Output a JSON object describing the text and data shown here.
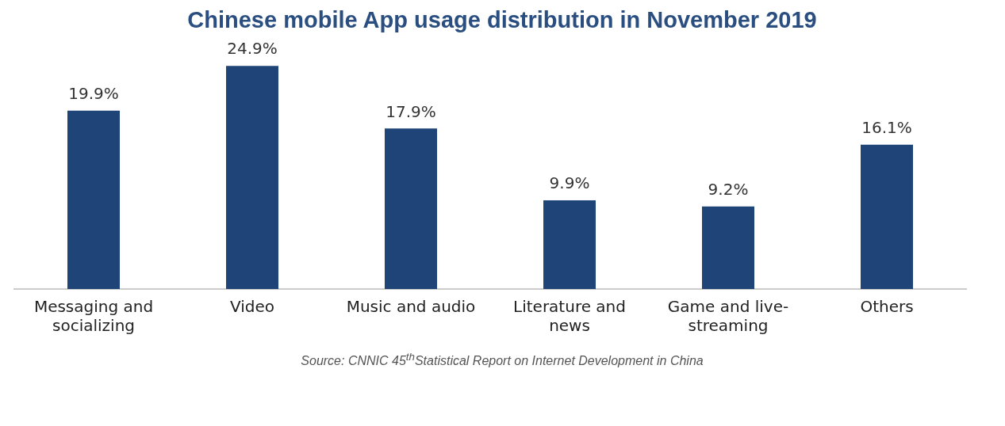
{
  "chart_data": {
    "type": "bar",
    "title": "Chinese mobile App usage distribution in November 2019",
    "categories": [
      "Messaging and socializing",
      "Video",
      "Music and audio",
      "Literature and news",
      "Game and live-streaming",
      "Others"
    ],
    "values": [
      19.9,
      24.9,
      17.9,
      9.9,
      9.2,
      16.1
    ],
    "value_labels": [
      "19.9%",
      "24.9%",
      "17.9%",
      "9.9%",
      "9.2%",
      "16.1%"
    ],
    "color": "#1f4578",
    "grid": false,
    "legend": false,
    "annotations": [
      "Source: CNNIC  45$^{th}$Statistical Report on Internet Development in China"
    ]
  }
}
